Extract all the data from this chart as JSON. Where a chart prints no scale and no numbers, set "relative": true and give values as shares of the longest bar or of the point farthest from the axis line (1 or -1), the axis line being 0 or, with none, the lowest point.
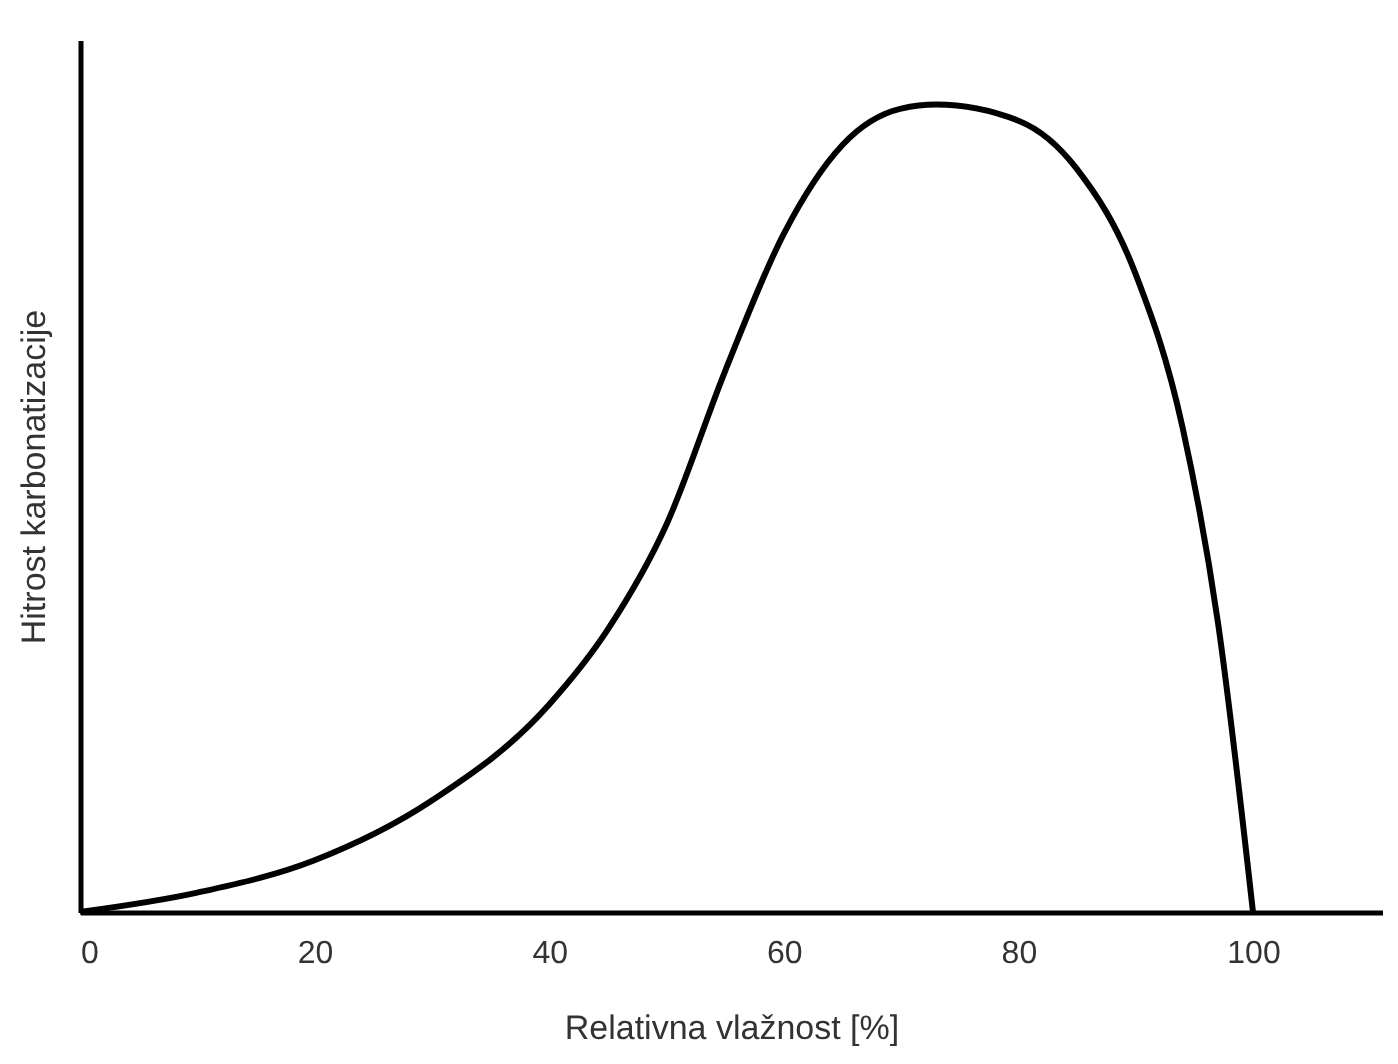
{
  "chart_data": {
    "type": "line",
    "xlabel": "Relativna vlažnost [%]",
    "ylabel": "Hitrost karbonatizacije",
    "relative": true,
    "x": [
      0,
      10,
      20,
      30,
      40,
      45,
      50,
      55,
      60,
      65,
      70,
      73,
      80,
      85,
      90,
      94,
      97,
      100
    ],
    "series": [
      {
        "color": "#000000",
        "values": [
          0,
          0.024,
          0.064,
          0.138,
          0.257,
          0.35,
          0.48,
          0.67,
          0.84,
          0.95,
          0.995,
          1,
          0.98,
          0.92,
          0.79,
          0.6,
          0.36,
          0
        ]
      }
    ],
    "xlim": [
      0,
      111
    ],
    "xticks": [
      0,
      20,
      40,
      60,
      80,
      100
    ],
    "grid": false
  }
}
